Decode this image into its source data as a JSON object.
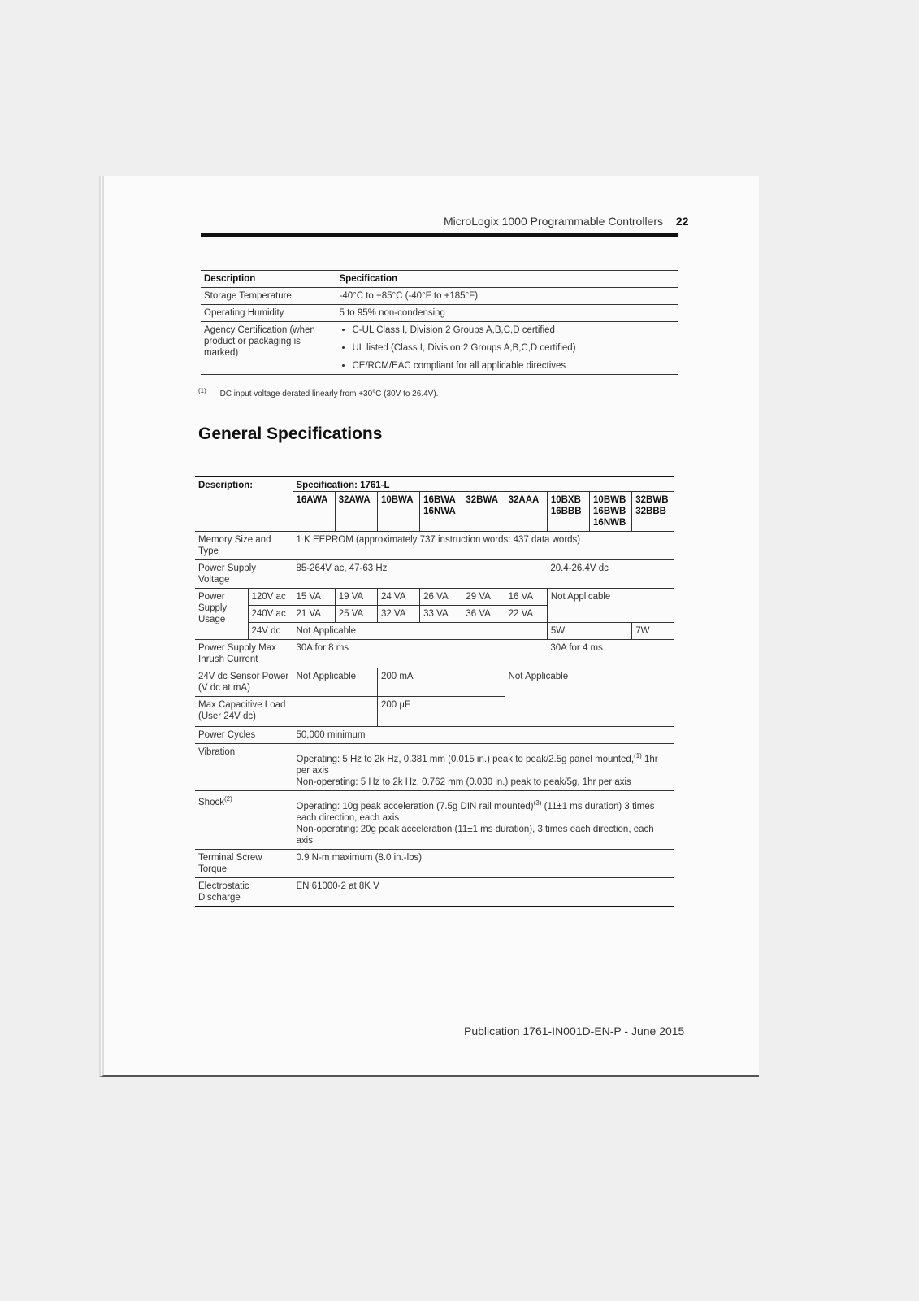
{
  "header": {
    "title": "MicroLogix 1000 Programmable Controllers",
    "page": "22"
  },
  "table1": {
    "columns": [
      "Description",
      "Specification"
    ],
    "rows": [
      [
        "Storage Temperature",
        "-40°C to +85°C (-40°F to +185°F)"
      ],
      [
        "Operating Humidity",
        "5 to 95% non-condensing"
      ],
      [
        "Agency Certification (when product or packaging is marked)",
        [
          "C-UL Class I, Division 2 Groups A,B,C,D certified",
          "UL listed (Class I, Division 2 Groups A,B,C,D certified)",
          "CE/RCM/EAC compliant for all applicable directives"
        ]
      ]
    ]
  },
  "footnote": {
    "mark": "(1)",
    "text": "DC input voltage derated linearly from +30°C (30V to 26.4V)."
  },
  "section_title": "General Specifications",
  "table2": {
    "description": "Description:",
    "specification": "Specification: 1761-L",
    "models": [
      [
        "16AWA"
      ],
      [
        "32AWA"
      ],
      [
        "10BWA"
      ],
      [
        "16BWA",
        "16NWA"
      ],
      [
        "32BWA"
      ],
      [
        "32AAA"
      ],
      [
        "10BXB",
        "16BBB"
      ],
      [
        "10BWB",
        "16BWB",
        "16NWB"
      ],
      [
        "32BWB",
        "32BBB"
      ]
    ],
    "memory": {
      "label": "Memory Size and Type",
      "value": "1 K EEPROM (approximately 737 instruction words: 437 data words)"
    },
    "supply_voltage": {
      "label": "Power Supply Voltage",
      "ac": "85-264V ac, 47-63 Hz",
      "dc": "20.4-26.4V dc"
    },
    "supply_usage": {
      "label": "Power Supply Usage",
      "rows": [
        {
          "label": "120V ac",
          "values": [
            "15 VA",
            "19 VA",
            "24 VA",
            "26 VA",
            "29 VA",
            "16 VA"
          ]
        },
        {
          "label": "240V ac",
          "values": [
            "21 VA",
            "25 VA",
            "32 VA",
            "33 VA",
            "36 VA",
            "22 VA"
          ]
        },
        {
          "label": "24V dc",
          "ac": "Not Applicable",
          "values": [
            "5W",
            "7W"
          ]
        }
      ],
      "dc_ac": "Not Applicable"
    },
    "inrush": {
      "label": "Power Supply Max Inrush Current",
      "ac": "30A for 8 ms",
      "dc": "30A for 4 ms"
    },
    "sensor": {
      "label": "24V dc Sensor Power (V dc at mA)",
      "values": [
        "Not Applicable",
        "200 mA",
        "Not Applicable"
      ]
    },
    "capacitive": {
      "label": "Max Capacitive Load (User 24V dc)",
      "value": "200 µF"
    },
    "cycles": {
      "label": "Power Cycles",
      "value": "50,000 minimum"
    },
    "vibration": {
      "label": "Vibration",
      "operating": "Operating:  5 Hz to 2k Hz, 0.381 mm (0.015 in.) peak to peak/2.5g panel mounted,",
      "operating_note": "(1)",
      "operating_end": " 1hr per axis",
      "non_operating": "Non-operating:  5 Hz to 2k Hz, 0.762 mm (0.030 in.) peak to peak/5g, 1hr per axis"
    },
    "shock": {
      "label": "Shock",
      "label_note": "(2)",
      "operating": "Operating: 10g peak acceleration (7.5g DIN rail mounted)",
      "operating_note": "(3)",
      "operating_end": " (11±1 ms duration) 3 times each direction, each axis",
      "non_operating": "Non-operating:  20g peak acceleration (11±1 ms duration), 3 times each direction, each axis"
    },
    "torque": {
      "label": "Terminal Screw Torque",
      "value": "0.9 N-m maximum (8.0 in.-lbs)"
    },
    "esd": {
      "label": "Electrostatic Discharge",
      "value": "EN 61000-2 at 8K V"
    }
  },
  "footer": "Publication 1761-IN001D-EN-P - June 2015"
}
